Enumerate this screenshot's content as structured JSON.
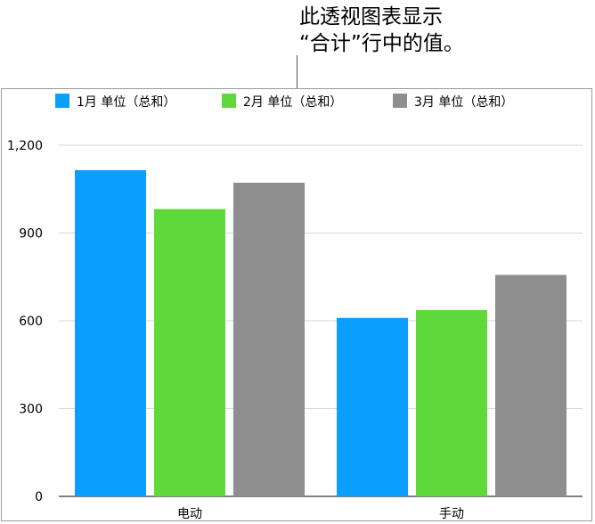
{
  "annotation": {
    "line1": "此透视图表显示",
    "line2": "“合计”行中的值。"
  },
  "chart_data": {
    "type": "bar",
    "categories": [
      "电动",
      "手动"
    ],
    "series": [
      {
        "name": "1月 单位（总和）",
        "values": [
          1115,
          610
        ],
        "color": "#0a9eff"
      },
      {
        "name": "2月 单位（总和）",
        "values": [
          982,
          637
        ],
        "color": "#5fd839"
      },
      {
        "name": "3月 单位（总和）",
        "values": [
          1072,
          757
        ],
        "color": "#8e8e8e"
      }
    ],
    "yticks": [
      0,
      300,
      600,
      900,
      1200
    ],
    "ytick_labels": [
      "0",
      "300",
      "600",
      "900",
      "1,200"
    ],
    "ylim": [
      0,
      1200
    ],
    "grid": true,
    "legend_position": "top"
  }
}
